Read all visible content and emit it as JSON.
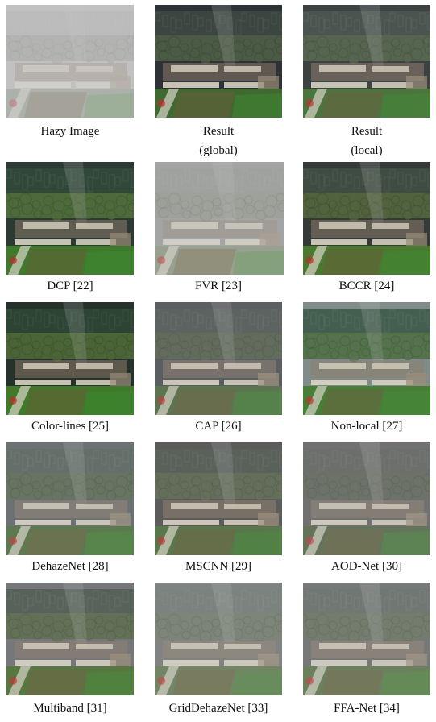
{
  "panels": [
    {
      "label": "Hazy Image",
      "sub": "",
      "variant": "hazy"
    },
    {
      "label": "Result",
      "sub": "(global)",
      "variant": "result"
    },
    {
      "label": "Result",
      "sub": "(local)",
      "variant": "result2"
    },
    {
      "label": "DCP [22]",
      "sub": "",
      "variant": "dcp"
    },
    {
      "label": "FVR [23]",
      "sub": "",
      "variant": "fvr"
    },
    {
      "label": "BCCR [24]",
      "sub": "",
      "variant": "bccr"
    },
    {
      "label": "Color-lines [25]",
      "sub": "",
      "variant": "color"
    },
    {
      "label": "CAP [26]",
      "sub": "",
      "variant": "cap"
    },
    {
      "label": "Non-local [27]",
      "sub": "",
      "variant": "nonlocal"
    },
    {
      "label": "DehazeNet [28]",
      "sub": "",
      "variant": "dehaze"
    },
    {
      "label": "MSCNN [29]",
      "sub": "",
      "variant": "mscnn"
    },
    {
      "label": "AOD-Net [30]",
      "sub": "",
      "variant": "aod"
    },
    {
      "label": "Multiband [31]",
      "sub": "",
      "variant": "multi"
    },
    {
      "label": "GridDehazeNet [33]",
      "sub": "",
      "variant": "grid"
    },
    {
      "label": "FFA-Net [34]",
      "sub": "",
      "variant": "ffa"
    }
  ]
}
